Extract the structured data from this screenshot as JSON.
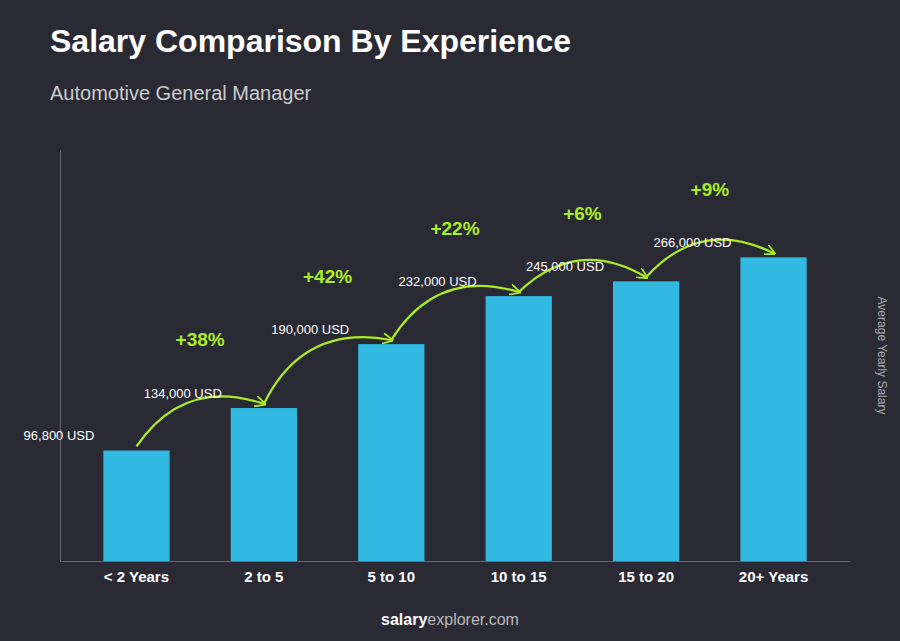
{
  "chart_data": {
    "type": "bar",
    "title": "Salary Comparison By Experience",
    "subtitle": "Automotive General Manager",
    "ylabel": "Average Yearly Salary",
    "footer": [
      "salary",
      "explorer.com"
    ],
    "categories": [
      "< 2 Years",
      "2 to 5",
      "5 to 10",
      "10 to 15",
      "15 to 20",
      "20+ Years"
    ],
    "values": [
      96800,
      134000,
      190000,
      232000,
      245000,
      266000
    ],
    "value_labels": [
      "96,800 USD",
      "134,000 USD",
      "190,000 USD",
      "232,000 USD",
      "245,000 USD",
      "266,000 USD"
    ],
    "data_labels": true,
    "color": "#33c6f0",
    "annotations": [
      {
        "text": "+38%",
        "color": "#aaee22"
      },
      {
        "text": "+42%",
        "color": "#aaee22"
      },
      {
        "text": "+22%",
        "color": "#aaee22"
      },
      {
        "text": "+6%",
        "color": "#aaee22"
      },
      {
        "text": "+9%",
        "color": "#aaee22"
      }
    ],
    "ylim": [
      0,
      360000
    ],
    "tick_labels": "x",
    "background_color": "#2a2a35"
  }
}
